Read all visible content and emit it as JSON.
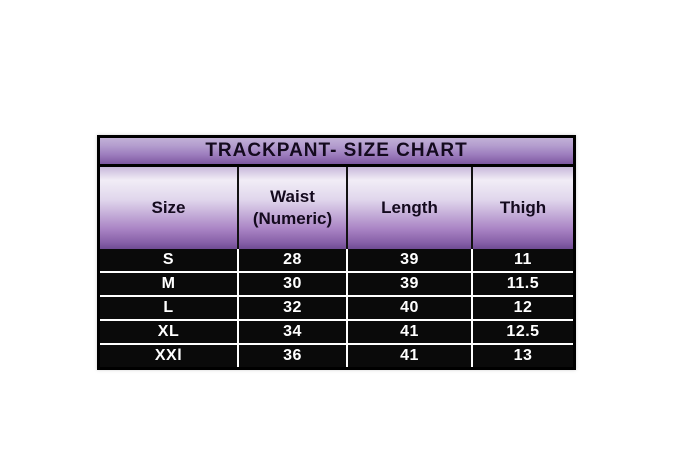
{
  "page": {
    "background": "#ffffff"
  },
  "table": {
    "title": "TRACKPANT- SIZE CHART",
    "headers": [
      "Size",
      "Waist (Numeric)",
      "Length",
      "Thigh"
    ],
    "rows": [
      [
        "S",
        "28",
        "39",
        "11"
      ],
      [
        "M",
        "30",
        "39",
        "11.5"
      ],
      [
        "L",
        "32",
        "40",
        "12"
      ],
      [
        "XL",
        "34",
        "41",
        "12.5"
      ],
      [
        "XXl",
        "36",
        "41",
        "13"
      ]
    ],
    "colors": {
      "title_gradient_top": "#c2b0d7",
      "title_gradient_bottom": "#7b57a0",
      "header_gradient_light": "#f1edf6",
      "header_gradient_dark": "#6f4b93",
      "row_background": "#0a0a0a",
      "row_text": "#ffffff",
      "header_text": "#140a1e",
      "border": "#000000",
      "row_divider": "#ffffff",
      "header_divider": "#121212"
    }
  },
  "chart_data": {
    "type": "table",
    "title": "TRACKPANT- SIZE CHART",
    "columns": [
      "Size",
      "Waist (Numeric)",
      "Length",
      "Thigh"
    ],
    "rows": [
      [
        "S",
        28,
        39,
        11
      ],
      [
        "M",
        30,
        39,
        11.5
      ],
      [
        "L",
        32,
        40,
        12
      ],
      [
        "XL",
        34,
        41,
        12.5
      ],
      [
        "XXl",
        36,
        41,
        13
      ]
    ]
  }
}
